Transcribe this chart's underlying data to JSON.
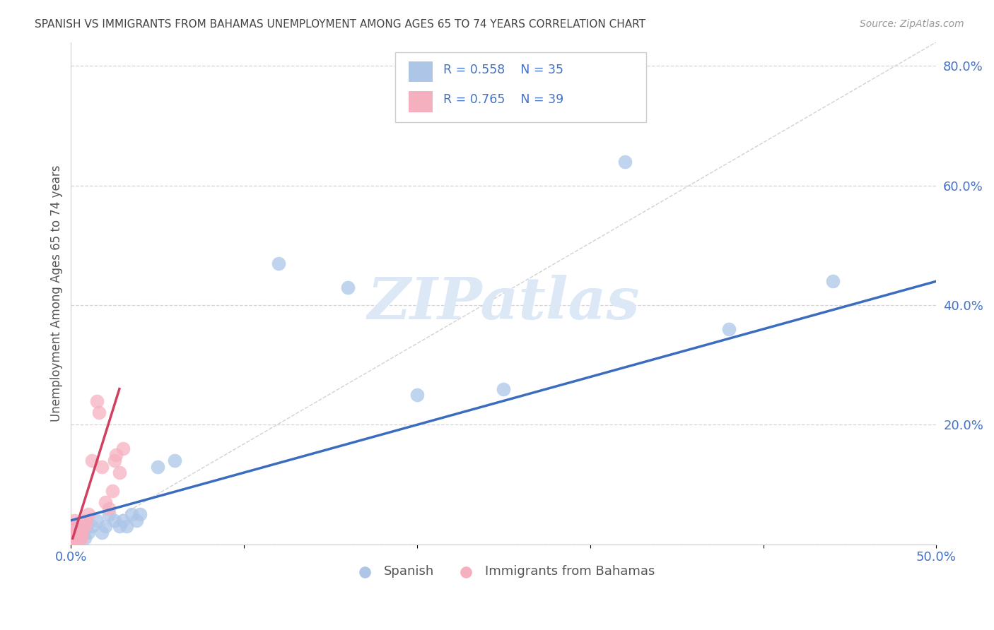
{
  "title": "SPANISH VS IMMIGRANTS FROM BAHAMAS UNEMPLOYMENT AMONG AGES 65 TO 74 YEARS CORRELATION CHART",
  "source": "Source: ZipAtlas.com",
  "ylabel": "Unemployment Among Ages 65 to 74 years",
  "xlim": [
    0.0,
    0.5
  ],
  "ylim": [
    0.0,
    0.84
  ],
  "xticks": [
    0.0,
    0.1,
    0.2,
    0.3,
    0.4,
    0.5
  ],
  "yticks": [
    0.0,
    0.2,
    0.4,
    0.6,
    0.8
  ],
  "background_color": "#ffffff",
  "grid_color": "#d0d0d0",
  "spanish_color": "#adc6e8",
  "bahamas_color": "#f5b0c0",
  "spanish_line_color": "#3a6cc0",
  "bahamas_line_color": "#d04060",
  "ref_line_color": "#cccccc",
  "title_color": "#444444",
  "axis_label_color": "#555555",
  "tick_color": "#4472c4",
  "watermark": "ZIPatlas",
  "watermark_color": "#dce8f5",
  "figsize": [
    14.06,
    8.92
  ],
  "dpi": 100,
  "spanish_x": [
    0.001,
    0.002,
    0.002,
    0.003,
    0.003,
    0.004,
    0.004,
    0.005,
    0.005,
    0.006,
    0.007,
    0.008,
    0.009,
    0.01,
    0.012,
    0.015,
    0.018,
    0.02,
    0.022,
    0.025,
    0.028,
    0.03,
    0.032,
    0.035,
    0.038,
    0.04,
    0.05,
    0.06,
    0.12,
    0.16,
    0.2,
    0.25,
    0.32,
    0.38,
    0.44
  ],
  "spanish_y": [
    0.01,
    0.02,
    0.01,
    0.03,
    0.02,
    0.02,
    0.01,
    0.03,
    0.01,
    0.02,
    0.02,
    0.01,
    0.03,
    0.02,
    0.03,
    0.04,
    0.02,
    0.03,
    0.05,
    0.04,
    0.03,
    0.04,
    0.03,
    0.05,
    0.04,
    0.05,
    0.13,
    0.14,
    0.47,
    0.43,
    0.25,
    0.26,
    0.64,
    0.36,
    0.44
  ],
  "bahamas_x": [
    0.001,
    0.001,
    0.001,
    0.001,
    0.001,
    0.001,
    0.002,
    0.002,
    0.002,
    0.002,
    0.002,
    0.002,
    0.002,
    0.003,
    0.003,
    0.003,
    0.003,
    0.004,
    0.004,
    0.004,
    0.005,
    0.005,
    0.006,
    0.006,
    0.007,
    0.008,
    0.009,
    0.01,
    0.012,
    0.015,
    0.016,
    0.018,
    0.02,
    0.022,
    0.024,
    0.025,
    0.026,
    0.028,
    0.03
  ],
  "bahamas_y": [
    0.01,
    0.02,
    0.01,
    0.02,
    0.01,
    0.03,
    0.02,
    0.01,
    0.03,
    0.02,
    0.02,
    0.01,
    0.04,
    0.02,
    0.01,
    0.03,
    0.02,
    0.01,
    0.02,
    0.03,
    0.01,
    0.02,
    0.02,
    0.01,
    0.03,
    0.03,
    0.04,
    0.05,
    0.14,
    0.24,
    0.22,
    0.13,
    0.07,
    0.06,
    0.09,
    0.14,
    0.15,
    0.12,
    0.16
  ],
  "spanish_trend_x": [
    0.0,
    0.5
  ],
  "spanish_trend_y": [
    0.04,
    0.44
  ],
  "bahamas_trend_x": [
    0.001,
    0.028
  ],
  "bahamas_trend_y": [
    0.01,
    0.26
  ]
}
